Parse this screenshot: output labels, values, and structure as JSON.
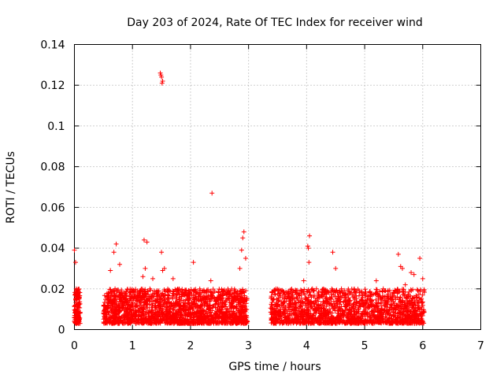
{
  "chart_data": {
    "type": "scatter",
    "title": "Day 203 of 2024, Rate Of TEC Index for receiver wind",
    "xlabel": "GPS time / hours",
    "ylabel": "ROTI / TECUs",
    "xlim": [
      0,
      7
    ],
    "ylim": [
      0,
      0.14
    ],
    "grid": true,
    "x_ticks": [
      "0",
      "1",
      "2",
      "3",
      "4",
      "5",
      "6",
      "7"
    ],
    "y_ticks": [
      "0",
      "0.02",
      "0.04",
      "0.06",
      "0.08",
      "0.1",
      "0.12",
      "0.14"
    ],
    "series": [
      {
        "name": "ROTI",
        "color": "#ff0000",
        "marker": "+",
        "x": [
          0.0,
          0.02,
          0.04,
          0.06,
          0.08,
          0.0,
          0.03,
          0.05,
          0.07,
          0.02,
          0.0,
          0.04,
          0.52,
          0.58,
          0.65,
          0.7,
          0.75,
          0.82,
          0.62,
          0.68,
          0.72,
          0.78,
          0.88,
          0.95,
          1.05,
          1.15,
          1.2,
          1.25,
          1.3,
          1.35,
          1.45,
          1.5,
          1.55,
          1.62,
          1.7,
          1.8,
          1.9,
          2.0,
          2.05,
          2.15,
          2.25,
          2.35,
          2.45,
          2.55,
          2.65,
          2.75,
          2.85,
          2.9,
          2.95,
          2.88,
          2.92,
          1.48,
          1.5,
          1.52,
          1.49,
          1.51,
          2.37,
          1.18,
          1.22,
          1.52,
          3.4,
          3.5,
          3.6,
          3.7,
          3.8,
          3.9,
          3.95,
          4.02,
          4.05,
          4.1,
          4.2,
          4.3,
          4.4,
          4.45,
          4.5,
          4.6,
          4.7,
          4.8,
          4.9,
          5.0,
          5.1,
          5.2,
          5.3,
          5.4,
          5.5,
          5.58,
          5.62,
          5.7,
          5.8,
          5.9,
          5.95,
          6.0,
          6.02,
          5.65,
          5.85,
          4.03,
          4.04
        ],
        "y": [
          0.006,
          0.012,
          0.018,
          0.009,
          0.015,
          0.004,
          0.02,
          0.007,
          0.011,
          0.033,
          0.039,
          0.01,
          0.006,
          0.015,
          0.01,
          0.02,
          0.008,
          0.012,
          0.029,
          0.038,
          0.042,
          0.032,
          0.014,
          0.018,
          0.011,
          0.016,
          0.044,
          0.043,
          0.02,
          0.025,
          0.012,
          0.038,
          0.03,
          0.015,
          0.025,
          0.01,
          0.018,
          0.012,
          0.033,
          0.008,
          0.015,
          0.024,
          0.009,
          0.013,
          0.017,
          0.007,
          0.03,
          0.045,
          0.035,
          0.039,
          0.048,
          0.126,
          0.124,
          0.122,
          0.125,
          0.121,
          0.067,
          0.026,
          0.03,
          0.029,
          0.01,
          0.012,
          0.008,
          0.015,
          0.011,
          0.009,
          0.024,
          0.041,
          0.046,
          0.02,
          0.012,
          0.01,
          0.015,
          0.038,
          0.03,
          0.02,
          0.012,
          0.016,
          0.009,
          0.011,
          0.014,
          0.024,
          0.01,
          0.015,
          0.018,
          0.037,
          0.031,
          0.022,
          0.028,
          0.016,
          0.035,
          0.025,
          0.019,
          0.03,
          0.027,
          0.04,
          0.033
        ]
      }
    ],
    "dense_bands": [
      {
        "from": 0.0,
        "to": 0.1,
        "ymin": 0.003,
        "ymax": 0.02,
        "count": 140
      },
      {
        "from": 0.5,
        "to": 2.98,
        "ymin": 0.003,
        "ymax": 0.02,
        "count": 1900
      },
      {
        "from": 3.38,
        "to": 6.03,
        "ymin": 0.003,
        "ymax": 0.02,
        "count": 1700
      }
    ]
  }
}
